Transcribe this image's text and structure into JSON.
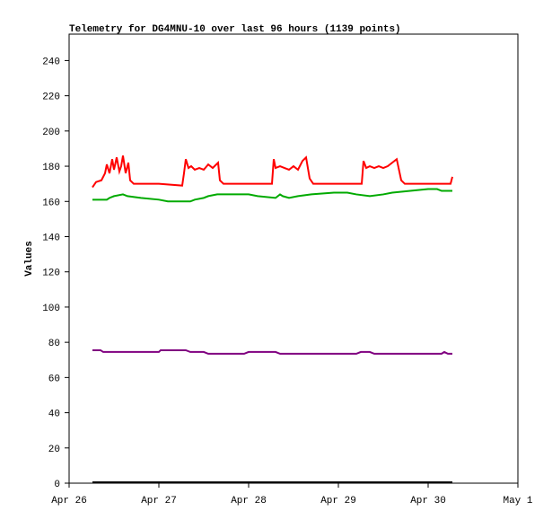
{
  "chart_data": {
    "type": "line",
    "title": "Telemetry for DG4MNU-10 over last 96 hours (1139 points)",
    "y_label": "Values",
    "xlim": [
      0,
      5
    ],
    "xticks": [
      {
        "value": 0,
        "label": "Apr 26"
      },
      {
        "value": 1,
        "label": "Apr 27"
      },
      {
        "value": 2,
        "label": "Apr 28"
      },
      {
        "value": 3,
        "label": "Apr 29"
      },
      {
        "value": 4,
        "label": "Apr 30"
      },
      {
        "value": 5,
        "label": "May 1"
      }
    ],
    "ylim": [
      0,
      255
    ],
    "yticks": [
      0,
      20,
      40,
      60,
      80,
      100,
      120,
      140,
      160,
      180,
      200,
      220,
      240
    ],
    "grid": false,
    "series": [
      {
        "color": "#ff0000",
        "x": [
          0.26,
          0.3,
          0.36,
          0.4,
          0.42,
          0.45,
          0.48,
          0.5,
          0.53,
          0.56,
          0.58,
          0.6,
          0.63,
          0.66,
          0.68,
          0.72,
          1.0,
          1.26,
          1.28,
          1.3,
          1.33,
          1.36,
          1.4,
          1.45,
          1.5,
          1.55,
          1.6,
          1.66,
          1.68,
          1.72,
          2.0,
          2.26,
          2.28,
          2.3,
          2.35,
          2.4,
          2.45,
          2.5,
          2.55,
          2.6,
          2.64,
          2.68,
          2.72,
          3.0,
          3.26,
          3.28,
          3.31,
          3.35,
          3.4,
          3.45,
          3.5,
          3.55,
          3.6,
          3.65,
          3.7,
          3.74,
          4.0,
          4.25,
          4.27
        ],
        "values": [
          168,
          171,
          172,
          176,
          181,
          176,
          184,
          178,
          185,
          177,
          180,
          186,
          176,
          182,
          172,
          170,
          170,
          169,
          176,
          184,
          179,
          180,
          178,
          179,
          178,
          181,
          179,
          182,
          172,
          170,
          170,
          170,
          184,
          179,
          180,
          179,
          178,
          180,
          178,
          183,
          185,
          173,
          170,
          170,
          170,
          183,
          179,
          180,
          179,
          180,
          179,
          180,
          182,
          184,
          172,
          170,
          170,
          170,
          174
        ]
      },
      {
        "color": "#00aa00",
        "x": [
          0.26,
          0.42,
          0.45,
          0.5,
          0.6,
          0.65,
          0.8,
          1.0,
          1.1,
          1.35,
          1.4,
          1.5,
          1.55,
          1.65,
          2.0,
          2.1,
          2.3,
          2.35,
          2.38,
          2.45,
          2.55,
          2.7,
          2.95,
          3.1,
          3.2,
          3.35,
          3.5,
          3.6,
          3.8,
          4.0,
          4.1,
          4.15,
          4.27
        ],
        "values": [
          161,
          161,
          162,
          163,
          164,
          163,
          162,
          161,
          160,
          160,
          161,
          162,
          163,
          164,
          164,
          163,
          162,
          164,
          163,
          162,
          163,
          164,
          165,
          165,
          164,
          163,
          164,
          165,
          166,
          167,
          167,
          166,
          166
        ]
      },
      {
        "color": "#800080",
        "x": [
          0.26,
          0.35,
          0.38,
          1.0,
          1.02,
          1.3,
          1.35,
          1.5,
          1.55,
          1.95,
          2.0,
          2.3,
          2.35,
          3.2,
          3.25,
          3.35,
          3.4,
          4.15,
          4.18,
          4.22,
          4.27
        ],
        "values": [
          75.5,
          75.5,
          74.5,
          74.5,
          75.5,
          75.5,
          74.5,
          74.5,
          73.5,
          73.5,
          74.5,
          74.5,
          73.5,
          73.5,
          74.5,
          74.5,
          73.5,
          73.5,
          74.5,
          73.5,
          73.5
        ]
      },
      {
        "color": "#000000",
        "x": [
          0.26,
          4.27
        ],
        "values": [
          0.5,
          0.5
        ]
      }
    ]
  }
}
